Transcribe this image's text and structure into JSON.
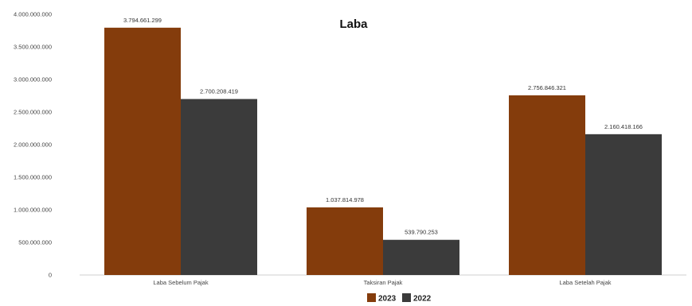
{
  "chart_data": {
    "type": "bar",
    "title": "Laba",
    "categories": [
      "Laba Sebelum Pajak",
      "Taksiran Pajak",
      "Laba Setelah Pajak"
    ],
    "series": [
      {
        "name": "2023",
        "color": "#843C0C",
        "values": [
          3794661299,
          1037814978,
          2756846321
        ],
        "labels": [
          "3.794.661.299",
          "1.037.814.978",
          "2.756.846.321"
        ]
      },
      {
        "name": "2022",
        "color": "#3B3B3B",
        "values": [
          2700208419,
          539790253,
          2160418166
        ],
        "labels": [
          "2.700.208.419",
          "539.790.253",
          "2.160.418.166"
        ]
      }
    ],
    "ylim": [
      0,
      4000000000
    ],
    "yticks": [
      0,
      500000000,
      1000000000,
      1500000000,
      2000000000,
      2500000000,
      3000000000,
      3500000000,
      4000000000
    ],
    "ytick_labels": [
      "0",
      "500.000.000",
      "1.000.000.000",
      "1.500.000.000",
      "2.000.000.000",
      "2.500.000.000",
      "3.000.000.000",
      "3.500.000.000",
      "4.000.000.000"
    ],
    "grid": false,
    "legend": "bottom"
  }
}
